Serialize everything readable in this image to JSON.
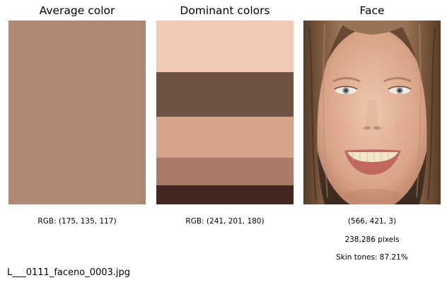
{
  "panels": {
    "average": {
      "title": "Average color",
      "color": "#af8775",
      "caption": "RGB: (175, 135, 117)"
    },
    "dominant": {
      "title": "Dominant colors",
      "colors": [
        {
          "hex": "#f1c9b4",
          "share": 0.28
        },
        {
          "hex": "#6e5244",
          "share": 0.245
        },
        {
          "hex": "#d5a48a",
          "share": 0.22
        },
        {
          "hex": "#a97a65",
          "share": 0.15
        },
        {
          "hex": "#422820",
          "share": 0.105
        }
      ],
      "caption": "RGB: (241, 201, 180)"
    },
    "face": {
      "title": "Face",
      "dimensions": "(566, 421, 3)",
      "pixels": "238,286 pixels",
      "skin_tones": "Skin tones: 87.21%"
    }
  },
  "filename": "L___0111_faceno_0003.jpg"
}
